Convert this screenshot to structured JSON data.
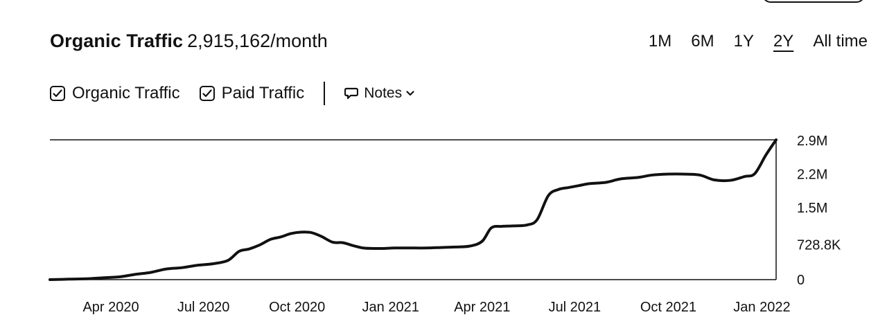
{
  "header": {
    "title": "Organic Traffic",
    "value": "2,915,162/month"
  },
  "ranges": [
    {
      "label": "1M",
      "active": false
    },
    {
      "label": "6M",
      "active": false
    },
    {
      "label": "1Y",
      "active": false
    },
    {
      "label": "2Y",
      "active": true
    },
    {
      "label": "All time",
      "active": false
    }
  ],
  "legend": {
    "organic": "Organic Traffic",
    "paid": "Paid Traffic",
    "notes": "Notes"
  },
  "chart_data": {
    "type": "line",
    "title": "Organic Traffic",
    "xlabel": "",
    "ylabel": "",
    "x_tick_labels": [
      "Apr 2020",
      "Jul 2020",
      "Oct 2020",
      "Jan 2021",
      "Apr 2021",
      "Jul 2021",
      "Oct 2021",
      "Jan 2022"
    ],
    "y_tick_labels": [
      "2.9M",
      "2.2M",
      "1.5M",
      "728.8K",
      "0"
    ],
    "y_ticks": [
      2900000,
      2200000,
      1500000,
      728800,
      0
    ],
    "ylim": [
      0,
      2915162
    ],
    "grid": "top line only",
    "series": [
      {
        "name": "Organic Traffic",
        "x": [
          "2020-02-01",
          "2020-02-20",
          "2020-03-10",
          "2020-03-25",
          "2020-04-10",
          "2020-04-25",
          "2020-05-10",
          "2020-05-25",
          "2020-06-10",
          "2020-06-25",
          "2020-07-10",
          "2020-07-25",
          "2020-08-05",
          "2020-08-15",
          "2020-08-25",
          "2020-09-05",
          "2020-09-15",
          "2020-09-25",
          "2020-10-05",
          "2020-10-15",
          "2020-10-25",
          "2020-11-05",
          "2020-11-15",
          "2020-11-25",
          "2020-12-05",
          "2020-12-15",
          "2020-12-25",
          "2021-01-05",
          "2021-01-20",
          "2021-02-05",
          "2021-02-20",
          "2021-03-05",
          "2021-03-20",
          "2021-04-01",
          "2021-04-10",
          "2021-04-20",
          "2021-05-01",
          "2021-05-15",
          "2021-05-25",
          "2021-06-05",
          "2021-06-15",
          "2021-06-25",
          "2021-07-05",
          "2021-07-15",
          "2021-08-01",
          "2021-08-15",
          "2021-09-01",
          "2021-09-15",
          "2021-10-01",
          "2021-10-15",
          "2021-11-01",
          "2021-11-15",
          "2021-12-01",
          "2021-12-15",
          "2021-12-25",
          "2022-01-05",
          "2022-01-15"
        ],
        "y": [
          0,
          10000,
          20000,
          40000,
          60000,
          110000,
          150000,
          220000,
          250000,
          300000,
          330000,
          400000,
          590000,
          640000,
          720000,
          840000,
          890000,
          960000,
          990000,
          980000,
          900000,
          780000,
          770000,
          710000,
          660000,
          650000,
          650000,
          660000,
          660000,
          660000,
          670000,
          680000,
          700000,
          800000,
          1080000,
          1110000,
          1120000,
          1140000,
          1250000,
          1750000,
          1880000,
          1920000,
          1960000,
          2000000,
          2030000,
          2100000,
          2130000,
          2180000,
          2200000,
          2200000,
          2180000,
          2080000,
          2070000,
          2150000,
          2210000,
          2600000,
          2915162
        ]
      }
    ]
  }
}
